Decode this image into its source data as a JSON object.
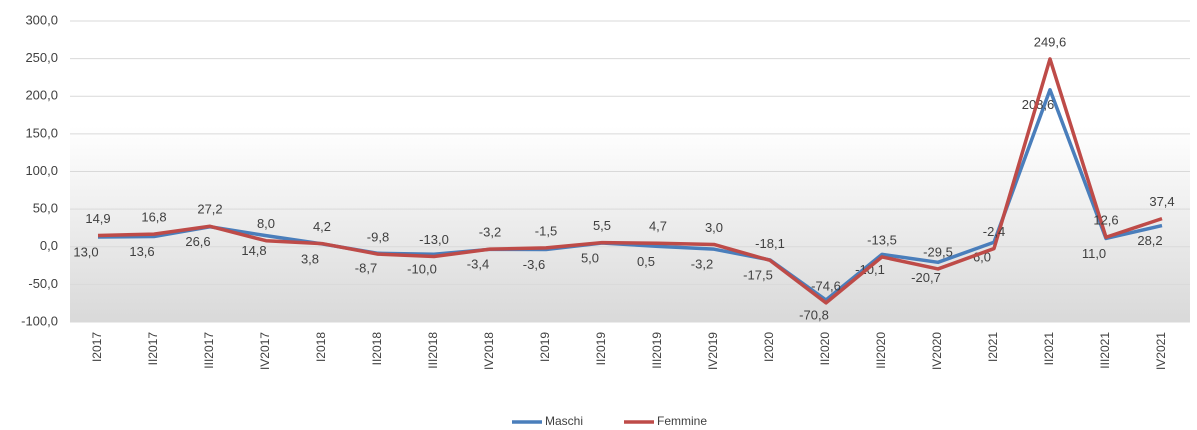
{
  "chart_data": {
    "type": "line",
    "categories": [
      "I2017",
      "II2017",
      "III2017",
      "IV2017",
      "I2018",
      "II2018",
      "III2018",
      "IV2018",
      "I2019",
      "II2019",
      "III2019",
      "IV2019",
      "I2020",
      "II2020",
      "III2020",
      "IV2020",
      "I2021",
      "II2021",
      "III2021",
      "IV2021"
    ],
    "series": [
      {
        "name": "Maschi",
        "color": "#4a7ebb",
        "values": [
          13.0,
          13.6,
          26.6,
          14.8,
          3.8,
          -8.7,
          -10.0,
          -3.4,
          -3.6,
          5.0,
          0.5,
          -3.2,
          -17.5,
          -70.8,
          -10.1,
          -20.7,
          6.0,
          208.6,
          11.0,
          28.2
        ],
        "value_labels": [
          "13,0",
          "13,6",
          "26,6",
          "14,8",
          "3,8",
          "-8,7",
          "-10,0",
          "-3,4",
          "-3,6",
          "5,0",
          "0,5",
          "-3,2",
          "-17,5",
          "-70,8",
          "-10,1",
          "-20,7",
          "6,0",
          "208,6",
          "11,0",
          "28,2"
        ]
      },
      {
        "name": "Femmine",
        "color": "#be4b48",
        "values": [
          14.9,
          16.8,
          27.2,
          8.0,
          4.2,
          -9.8,
          -13.0,
          -3.2,
          -1.5,
          5.5,
          4.7,
          3.0,
          -18.1,
          -74.6,
          -13.5,
          -29.5,
          -2.4,
          249.6,
          12.6,
          37.4
        ],
        "value_labels": [
          "14,9",
          "16,8",
          "27,2",
          "8,0",
          "4,2",
          "-9,8",
          "-13,0",
          "-3,2",
          "-1,5",
          "5,5",
          "4,7",
          "3,0",
          "-18,1",
          "-74,6",
          "-13,5",
          "-29,5",
          "-2,4",
          "249,6",
          "12,6",
          "37,4"
        ]
      }
    ],
    "ylim": [
      -100,
      300
    ],
    "yticks": [
      {
        "value": -100,
        "label": "-100,0"
      },
      {
        "value": -50,
        "label": "-50,0"
      },
      {
        "value": 0,
        "label": "0,0"
      },
      {
        "value": 50,
        "label": "50,0"
      },
      {
        "value": 100,
        "label": "100,0"
      },
      {
        "value": 150,
        "label": "150,0"
      },
      {
        "value": 200,
        "label": "200,0"
      },
      {
        "value": 250,
        "label": "250,0"
      },
      {
        "value": 300,
        "label": "300,0"
      }
    ],
    "grid": true,
    "legend": "bottom"
  }
}
